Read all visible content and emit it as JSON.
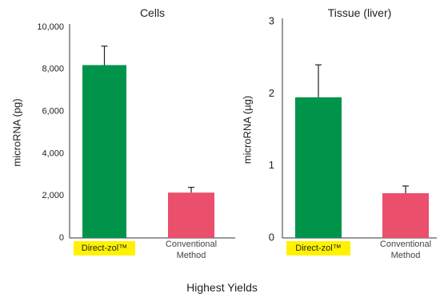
{
  "figure_caption": "Highest Yields",
  "colors": {
    "primary_bar": "#00944a",
    "secondary_bar": "#ea4f6b",
    "highlight": "#fff200",
    "axis": "#333333",
    "error_bar": "#222222"
  },
  "chart_data": [
    {
      "type": "bar",
      "title": "Cells",
      "ylabel": "microRNA (pg)",
      "xlabel": "",
      "ylim": [
        0,
        10000
      ],
      "yticks": [
        0,
        2000,
        4000,
        6000,
        8000,
        10000
      ],
      "ytick_labels": [
        "0",
        "2,000",
        "4,000",
        "6,000",
        "8,000",
        "10,000"
      ],
      "categories": [
        "Direct-zol™",
        "Conventional Method"
      ],
      "values": [
        8200,
        2150
      ],
      "errors": [
        900,
        250
      ],
      "grid": false,
      "legend": "none"
    },
    {
      "type": "bar",
      "title": "Tissue (liver)",
      "ylabel": "microRNA (µg)",
      "xlabel": "",
      "ylim": [
        0,
        3
      ],
      "yticks": [
        0,
        1,
        2,
        3
      ],
      "ytick_labels": [
        "0",
        "1",
        "2",
        "3"
      ],
      "categories": [
        "Direct-zol™",
        "Conventional Method"
      ],
      "values": [
        1.95,
        0.62
      ],
      "errors": [
        0.45,
        0.1
      ],
      "grid": false,
      "legend": "none"
    }
  ]
}
